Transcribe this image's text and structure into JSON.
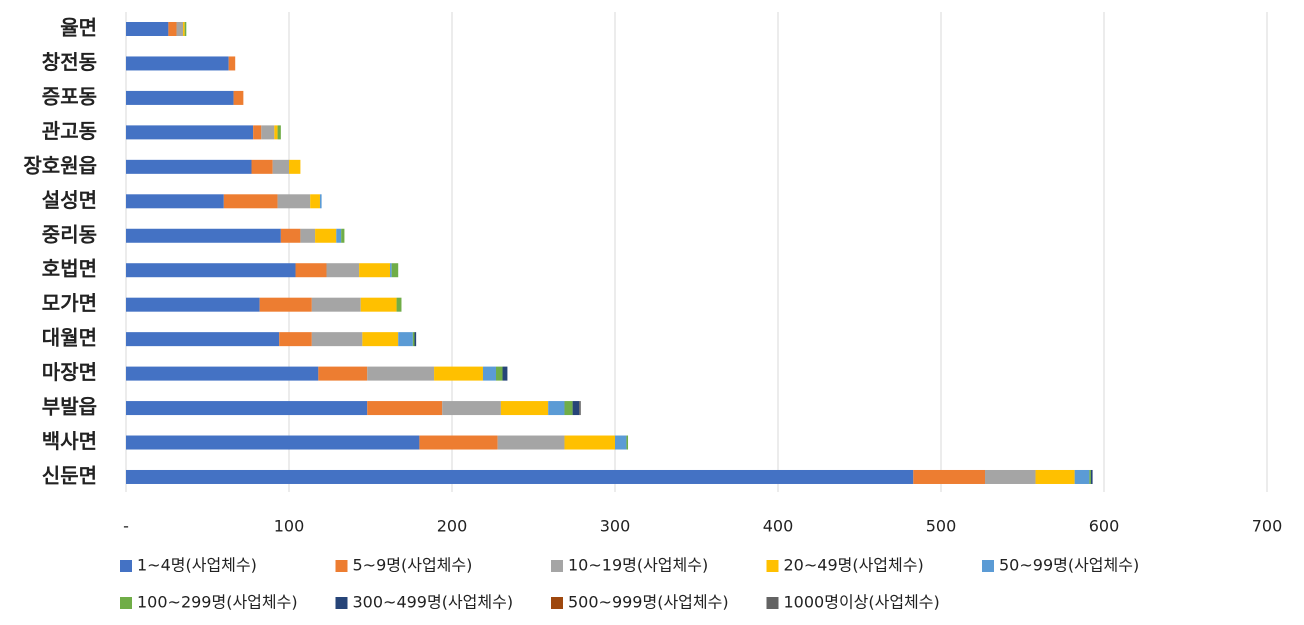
{
  "chart_data": {
    "type": "stacked-bar-horizontal",
    "categories": [
      "율면",
      "창전동",
      "증포동",
      "관고동",
      "장호원읍",
      "설성면",
      "중리동",
      "호법면",
      "모가면",
      "대월면",
      "마장면",
      "부발읍",
      "백사면",
      "신둔면"
    ],
    "series": [
      {
        "name": "1~4명(사업체수)",
        "color": "#4472c4",
        "values": [
          26,
          63,
          66,
          78,
          77,
          60,
          95,
          104,
          82,
          94,
          118,
          148,
          180,
          483
        ]
      },
      {
        "name": "5~9명(사업체수)",
        "color": "#ed7d31",
        "values": [
          5,
          4,
          6,
          5,
          13,
          33,
          12,
          19,
          32,
          20,
          30,
          46,
          48,
          44
        ]
      },
      {
        "name": "10~19명(사업체수)",
        "color": "#a5a5a5",
        "values": [
          4,
          0,
          0,
          8,
          10,
          20,
          9,
          20,
          30,
          31,
          41,
          36,
          41,
          31
        ]
      },
      {
        "name": "20~49명(사업체수)",
        "color": "#ffc000",
        "values": [
          1,
          0,
          0,
          2,
          7,
          6,
          13,
          19,
          22,
          22,
          30,
          29,
          31,
          24
        ]
      },
      {
        "name": "50~99명(사업체수)",
        "color": "#5b9bd5",
        "values": [
          0,
          0,
          0,
          0,
          0,
          1,
          3,
          1,
          0,
          9,
          8,
          10,
          7,
          9
        ]
      },
      {
        "name": "100~299명(사업체수)",
        "color": "#70ad47",
        "values": [
          1,
          0,
          0,
          2,
          0,
          0,
          2,
          4,
          3,
          1,
          4,
          5,
          1,
          1
        ]
      },
      {
        "name": "300~499명(사업체수)",
        "color": "#264478",
        "values": [
          0,
          0,
          0,
          0,
          0,
          0,
          0,
          0,
          0,
          1,
          3,
          4,
          0,
          1
        ]
      },
      {
        "name": "500~999명(사업체수)",
        "color": "#9e480e",
        "values": [
          0,
          0,
          0,
          0,
          0,
          0,
          0,
          0,
          0,
          0,
          0,
          0,
          0,
          0
        ]
      },
      {
        "name": "1000명이상(사업체수)",
        "color": "#636363",
        "values": [
          0,
          0,
          0,
          0,
          0,
          0,
          0,
          0,
          0,
          0,
          0,
          1,
          0,
          0
        ]
      }
    ],
    "xlim": [
      0,
      700
    ],
    "xticks": [
      {
        "value": 0,
        "label": "-"
      },
      100,
      200,
      300,
      400,
      500,
      600,
      700
    ],
    "grid": true
  }
}
